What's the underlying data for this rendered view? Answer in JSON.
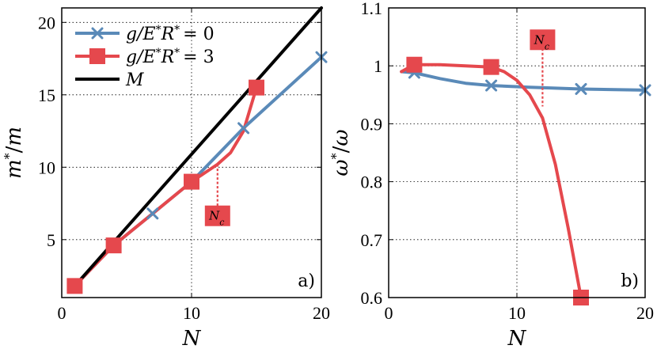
{
  "colors": {
    "blue": "#5a8ab8",
    "red": "#e5484d",
    "black": "#000000"
  },
  "chart_data": [
    {
      "type": "line",
      "panel_label": "a)",
      "xlabel_var": "N",
      "ylabel_num": "m",
      "ylabel_den": "m",
      "xlim": [
        0,
        20
      ],
      "ylim": [
        1,
        21
      ],
      "xticks": [
        0,
        10,
        20
      ],
      "xtick_labels": [
        "0",
        "10",
        "20"
      ],
      "yticks": [
        5,
        10,
        15,
        20
      ],
      "ytick_labels": [
        "5",
        "10",
        "15",
        "20"
      ],
      "grid": true,
      "legend_position": "top-left",
      "legend": [
        {
          "lhs": "g/E",
          "mid": "R",
          "rhs": "= 0",
          "color": "blue",
          "marker": "x"
        },
        {
          "lhs": "g/E",
          "mid": "R",
          "rhs": "= 3",
          "color": "red",
          "marker": "square"
        },
        {
          "lhs": "M",
          "color": "black",
          "marker": "none"
        }
      ],
      "series": [
        {
          "key": "blue",
          "color": "blue",
          "marker": "x",
          "x": [
            1,
            4,
            7,
            10,
            14,
            20
          ],
          "y": [
            1.8,
            4.6,
            6.8,
            9.0,
            12.7,
            17.6
          ],
          "line": [
            [
              1,
              1.8
            ],
            [
              4,
              4.6
            ],
            [
              7,
              6.8
            ],
            [
              10,
              9.0
            ],
            [
              14,
              12.7
            ],
            [
              20,
              17.6
            ]
          ]
        },
        {
          "key": "red",
          "color": "red",
          "marker": "square",
          "x": [
            1,
            4,
            10,
            15
          ],
          "y": [
            1.8,
            4.6,
            9.0,
            15.5
          ],
          "line": [
            [
              1,
              1.8
            ],
            [
              4,
              4.6
            ],
            [
              7,
              6.8
            ],
            [
              10,
              9.0
            ],
            [
              11,
              9.6
            ],
            [
              12,
              10.2
            ],
            [
              13,
              11.0
            ],
            [
              14,
              12.5
            ],
            [
              14.5,
              14.0
            ],
            [
              15,
              15.5
            ]
          ]
        },
        {
          "key": "black",
          "color": "black",
          "marker": "none",
          "line": [
            [
              1,
              1.8
            ],
            [
              20,
              21.0
            ]
          ]
        }
      ],
      "annotation": {
        "label": "N",
        "sub": "c",
        "x": 12,
        "y_top": 10.2,
        "y_bottom": 7.3
      }
    },
    {
      "type": "line",
      "panel_label": "b)",
      "xlabel_var": "N",
      "xlim": [
        0,
        20
      ],
      "ylim": [
        0.6,
        1.1
      ],
      "xticks": [
        0,
        10,
        20
      ],
      "xtick_labels": [
        "0",
        "10",
        "20"
      ],
      "yticks": [
        0.6,
        0.7,
        0.8,
        0.9,
        1.0,
        1.1
      ],
      "ytick_labels": [
        "0.6",
        "0.7",
        "0.8",
        "0.9",
        "1",
        "1.1"
      ],
      "grid": true,
      "series": [
        {
          "key": "blue",
          "color": "blue",
          "marker": "x",
          "x": [
            2,
            8,
            15,
            20
          ],
          "y": [
            0.988,
            0.966,
            0.96,
            0.958
          ],
          "line": [
            [
              1,
              0.99
            ],
            [
              2,
              0.988
            ],
            [
              4,
              0.978
            ],
            [
              6,
              0.97
            ],
            [
              8,
              0.966
            ],
            [
              11,
              0.963
            ],
            [
              15,
              0.96
            ],
            [
              20,
              0.958
            ]
          ]
        },
        {
          "key": "red",
          "color": "red",
          "marker": "square",
          "x": [
            2,
            8,
            15
          ],
          "y": [
            1.002,
            0.998,
            0.6
          ],
          "line": [
            [
              1,
              0.99
            ],
            [
              2,
              1.002
            ],
            [
              4,
              1.002
            ],
            [
              6,
              1.0
            ],
            [
              8,
              0.998
            ],
            [
              9,
              0.99
            ],
            [
              10,
              0.975
            ],
            [
              11,
              0.95
            ],
            [
              12,
              0.91
            ],
            [
              13,
              0.83
            ],
            [
              14,
              0.72
            ],
            [
              14.5,
              0.66
            ],
            [
              15,
              0.6
            ]
          ]
        }
      ],
      "annotation": {
        "label": "N",
        "sub": "c",
        "x": 12,
        "y_top": 1.045,
        "y_bottom": 0.93
      }
    }
  ]
}
